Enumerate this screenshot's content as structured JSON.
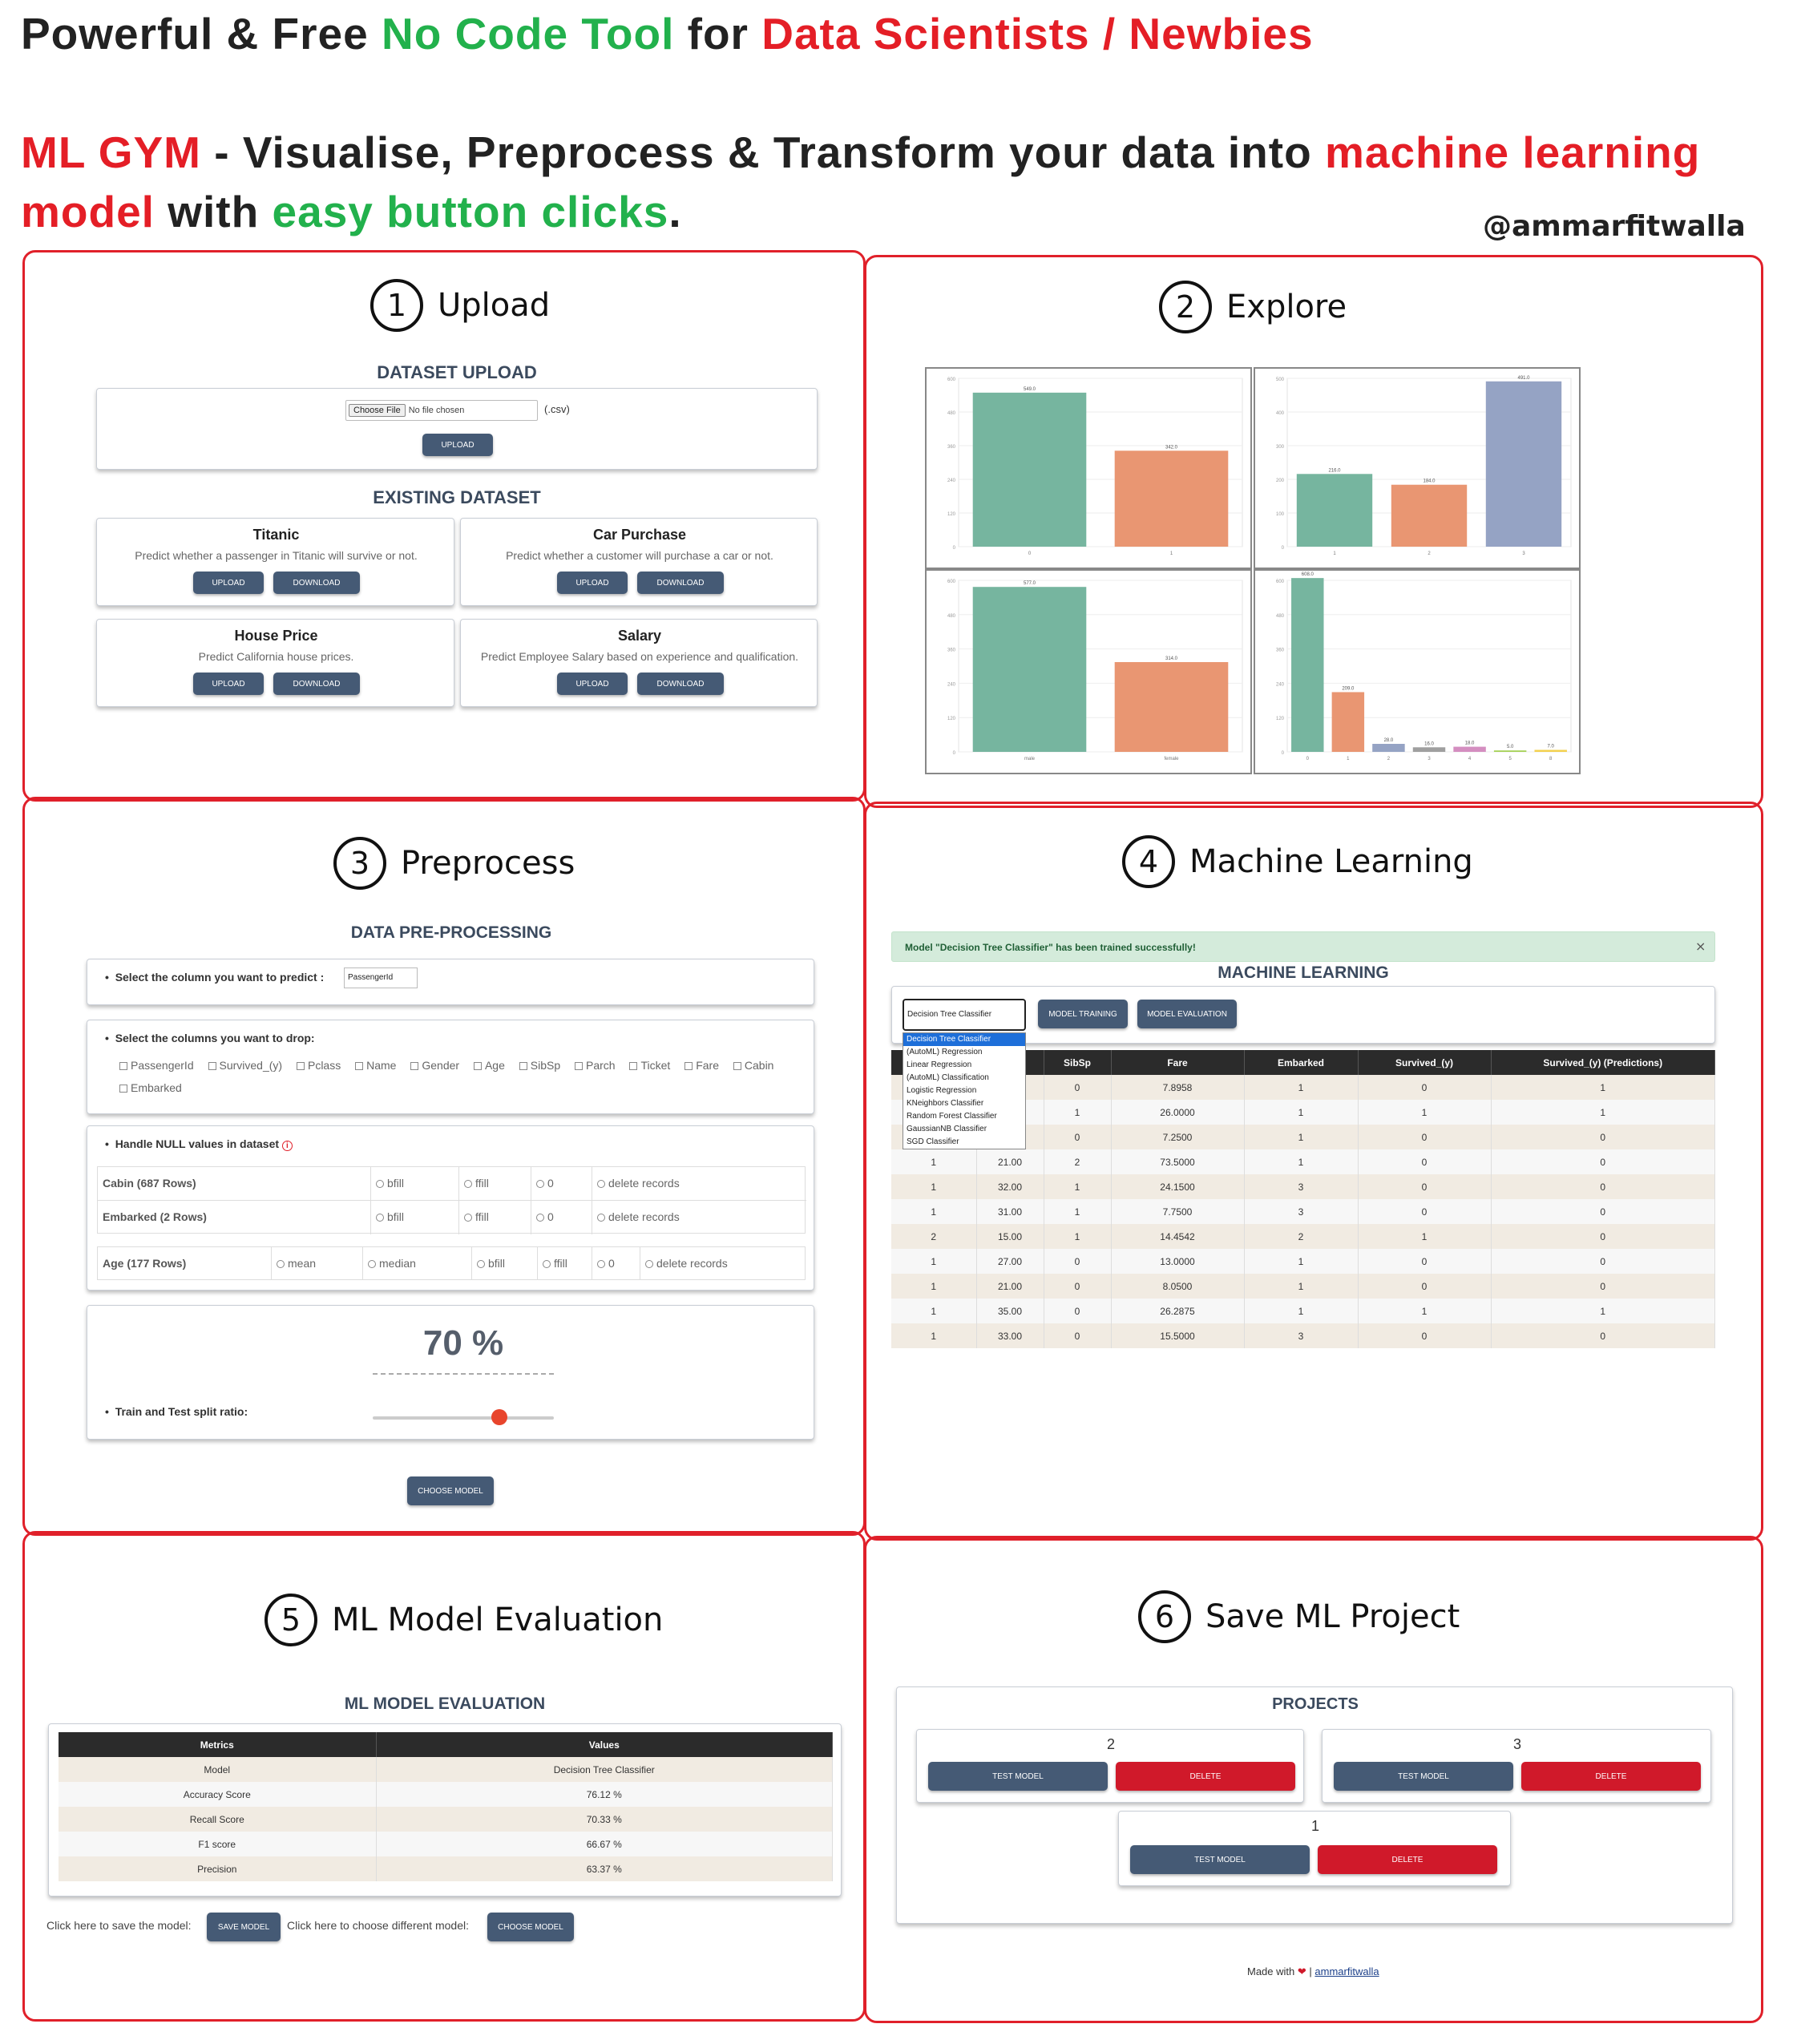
{
  "headline": {
    "line1": {
      "a": "Powerful & Free ",
      "b": "No Code Tool",
      "c": " for ",
      "d": "Data Scientists / Newbies"
    },
    "line2": {
      "a": "ML GYM",
      "b": " - Visualise, Preprocess & Transform your data into ",
      "c": "machine learning"
    },
    "line3": {
      "a": "model",
      "b": " with ",
      "c": "easy button clicks",
      "d": "."
    },
    "handle": "@ammarfitwalla"
  },
  "panels": {
    "upload": {
      "num": "1",
      "title": "Upload"
    },
    "explore": {
      "num": "2",
      "title": "Explore"
    },
    "preprocess": {
      "num": "3",
      "title": "Preprocess"
    },
    "ml": {
      "num": "4",
      "title": "Machine Learning"
    },
    "eval": {
      "num": "5",
      "title": "ML Model Evaluation"
    },
    "save": {
      "num": "6",
      "title": "Save ML Project"
    }
  },
  "upload": {
    "heading": "DATASET UPLOAD",
    "choose": "Choose File",
    "nofile": "No file chosen",
    "ext": "(.csv)",
    "upload_btn": "UPLOAD",
    "existing": "EXISTING DATASET",
    "datasets": [
      {
        "name": "Titanic",
        "desc": "Predict whether a passenger in Titanic will survive or not."
      },
      {
        "name": "Car Purchase",
        "desc": "Predict whether a customer will purchase a car or not."
      },
      {
        "name": "House Price",
        "desc": "Predict California house prices."
      },
      {
        "name": "Salary",
        "desc": "Predict Employee Salary based on experience and qualification."
      }
    ],
    "btn_upload": "UPLOAD",
    "btn_download": "DOWNLOAD"
  },
  "explore": {
    "colors": {
      "green": "#76b59f",
      "orange": "#e99672",
      "blue": "#95a3c4",
      "gray": "#9f9f9f"
    },
    "charts": [
      {
        "type": "bar",
        "categories": [
          "0",
          "1"
        ],
        "values": [
          549,
          342
        ],
        "ylim": [
          0,
          600
        ]
      },
      {
        "type": "bar",
        "categories": [
          "1",
          "2",
          "3"
        ],
        "values": [
          216,
          184,
          491
        ],
        "ylim": [
          0,
          500
        ]
      },
      {
        "type": "bar",
        "categories": [
          "male",
          "female"
        ],
        "values": [
          577,
          314
        ],
        "ylim": [
          0,
          600
        ]
      },
      {
        "type": "bar",
        "categories": [
          "0",
          "1",
          "2",
          "3",
          "4",
          "5",
          "8"
        ],
        "values": [
          608,
          209,
          28,
          16,
          18,
          5,
          7
        ],
        "ylim": [
          0,
          600
        ]
      }
    ]
  },
  "preprocess": {
    "heading": "DATA PRE-PROCESSING",
    "predict_label": "Select the column you want to predict :",
    "predict_value": "PassengerId",
    "drop_label": "Select the columns you want to drop:",
    "drop_cols": [
      "PassengerId",
      "Survived_(y)",
      "Pclass",
      "Name",
      "Gender",
      "Age",
      "SibSp",
      "Parch",
      "Ticket",
      "Fare",
      "Cabin",
      "Embarked"
    ],
    "null_label": "Handle NULL values in dataset",
    "null_rows": [
      {
        "col": "Cabin (687 Rows)",
        "opts": [
          "bfill",
          "ffill",
          "0",
          "delete records"
        ]
      },
      {
        "col": "Embarked (2 Rows)",
        "opts": [
          "bfill",
          "ffill",
          "0",
          "delete records"
        ]
      }
    ],
    "age_row": {
      "col": "Age (177 Rows)",
      "opts": [
        "mean",
        "median",
        "bfill",
        "ffill",
        "0",
        "delete records"
      ]
    },
    "split_value": "70 %",
    "split_label": "Train and Test split ratio:",
    "split_fraction": 0.7,
    "choose_btn": "CHOOSE MODEL"
  },
  "ml": {
    "alert": "Model \"Decision Tree Classifier\" has been trained successfully!",
    "close": "×",
    "heading": "MACHINE LEARNING",
    "select_value": "Decision Tree Classifier",
    "train_btn": "MODEL TRAINING",
    "eval_btn": "MODEL EVALUATION",
    "options": [
      "Decision Tree Classifier",
      "(AutoML) Regression",
      "Linear Regression",
      "(AutoML) Classification",
      "Logistic Regression",
      "KNeighbors Classifier",
      "Random Forest Classifier",
      "GaussianNB Classifier",
      "SGD Classifier"
    ],
    "headers": [
      "",
      "",
      "SibSp",
      "Fare",
      "Embarked",
      "Survived_(y)",
      "Survived_(y) (Predictions)"
    ],
    "rows": [
      [
        "",
        "",
        "0",
        "7.8958",
        "1",
        "0",
        "1"
      ],
      [
        "",
        "",
        "1",
        "26.0000",
        "1",
        "1",
        "1"
      ],
      [
        "",
        "",
        "0",
        "7.2500",
        "1",
        "0",
        "0"
      ],
      [
        "1",
        "21.00",
        "2",
        "73.5000",
        "1",
        "0",
        "0"
      ],
      [
        "1",
        "32.00",
        "1",
        "24.1500",
        "3",
        "0",
        "0"
      ],
      [
        "1",
        "31.00",
        "1",
        "7.7500",
        "3",
        "0",
        "0"
      ],
      [
        "2",
        "15.00",
        "1",
        "14.4542",
        "2",
        "1",
        "0"
      ],
      [
        "1",
        "27.00",
        "0",
        "13.0000",
        "1",
        "0",
        "0"
      ],
      [
        "1",
        "21.00",
        "0",
        "8.0500",
        "1",
        "0",
        "0"
      ],
      [
        "1",
        "35.00",
        "0",
        "26.2875",
        "1",
        "1",
        "1"
      ],
      [
        "1",
        "33.00",
        "0",
        "15.5000",
        "3",
        "0",
        "0"
      ]
    ]
  },
  "eval": {
    "heading": "ML MODEL EVALUATION",
    "headers": [
      "Metrics",
      "Values"
    ],
    "rows": [
      [
        "Model",
        "Decision Tree Classifier"
      ],
      [
        "Accuracy Score",
        "76.12 %"
      ],
      [
        "Recall Score",
        "70.33 %"
      ],
      [
        "F1 score",
        "66.67 %"
      ],
      [
        "Precision",
        "63.37 %"
      ]
    ],
    "save_text": "Click here to save the model:",
    "save_btn": "SAVE MODEL",
    "choose_text": "Click here to choose different model:",
    "choose_btn": "CHOOSE MODEL"
  },
  "save": {
    "heading": "PROJECTS",
    "projects": [
      {
        "name": "2"
      },
      {
        "name": "3"
      },
      {
        "name": "1"
      }
    ],
    "test_btn": "TEST MODEL",
    "delete_btn": "DELETE",
    "footer_a": "Made with",
    "footer_heart": "❤",
    "footer_sep": "|",
    "footer_link": "ammarfitwalla"
  }
}
